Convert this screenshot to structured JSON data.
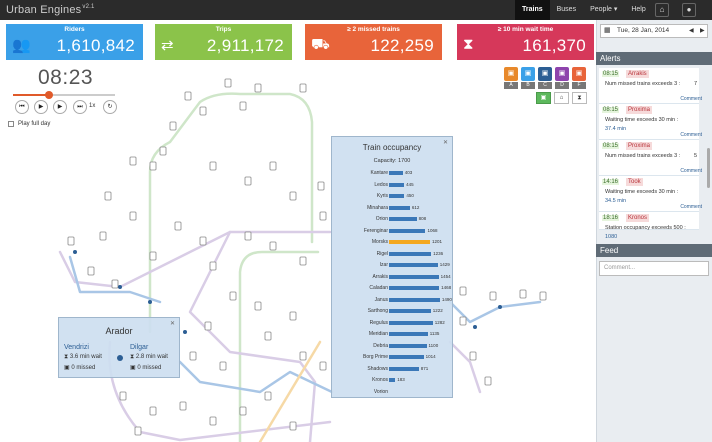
{
  "app": {
    "title": "Urban Engines",
    "version": "v2.1"
  },
  "nav": {
    "items": [
      "Trains",
      "Buses",
      "People",
      "Help"
    ],
    "active": "Trains",
    "people_caret": "▾"
  },
  "kpis": [
    {
      "label": "Riders",
      "value": "1,610,842",
      "color": "#3aa0e8",
      "icon": "riders-icon"
    },
    {
      "label": "Trips",
      "value": "2,911,172",
      "color": "#8bc34a",
      "icon": "trips-icon"
    },
    {
      "label": "≥ 2 missed trains",
      "value": "122,259",
      "color": "#e8643a",
      "icon": "missed-trains-icon"
    },
    {
      "label": "≥ 10 min wait time",
      "value": "161,370",
      "color": "#d6385a",
      "icon": "hourglass-icon"
    }
  ],
  "playback": {
    "time": "08:23",
    "speed": "1x",
    "play_full_day": "Play full day",
    "progress": 0.35
  },
  "modes": [
    {
      "letter": "A",
      "color": "#e8892b"
    },
    {
      "letter": "B",
      "color": "#3aa0e8"
    },
    {
      "letter": "C",
      "color": "#2c5e94"
    },
    {
      "letter": "D",
      "color": "#8e44ad"
    },
    {
      "letter": "F",
      "color": "#e8643a"
    }
  ],
  "occupancy": {
    "title": "Train occupancy",
    "capacity": "Capacity: 1700",
    "max": 1700,
    "rows": [
      {
        "name": "Kantare",
        "value": 403
      },
      {
        "name": "Ledos",
        "value": 445
      },
      {
        "name": "Kyris",
        "value": 450
      },
      {
        "name": "Minahara",
        "value": 612
      },
      {
        "name": "Orion",
        "value": 808
      },
      {
        "name": "Ferenginar",
        "value": 1068
      },
      {
        "name": "Morsks",
        "value": 1201,
        "highlight": true
      },
      {
        "name": "Rigel",
        "value": 1236
      },
      {
        "name": "Izar",
        "value": 1429
      },
      {
        "name": "Arrakis",
        "value": 1454
      },
      {
        "name": "Caladan",
        "value": 1468
      },
      {
        "name": "Janus",
        "value": 1490
      },
      {
        "name": "Sarthong",
        "value": 1222
      },
      {
        "name": "Regulus",
        "value": 1282
      },
      {
        "name": "Meridian",
        "value": 1135
      },
      {
        "name": "Debria",
        "value": 1100
      },
      {
        "name": "Borg Prime",
        "value": 1014
      },
      {
        "name": "Shadows",
        "value": 871
      },
      {
        "name": "Kronos",
        "value": 183
      },
      {
        "name": "Vorion",
        "value": 0
      }
    ]
  },
  "station": {
    "title": "Arador",
    "left": {
      "name": "Vendrizi",
      "wait": "3.6 min wait",
      "missed": "0 missed"
    },
    "right": {
      "name": "Dilgar",
      "wait": "2.8 min wait",
      "missed": "0 missed"
    }
  },
  "sidebar": {
    "date": "Tue, 28 Jan, 2014",
    "alerts_title": "Alerts",
    "feed_title": "Feed",
    "feed_placeholder": "Comment...",
    "alerts": [
      {
        "time": "08:15",
        "who": "Arrakis",
        "msg": "Num missed trains exceeds 3 :",
        "count": "7",
        "sub": "",
        "comment": "Comment"
      },
      {
        "time": "08:15",
        "who": "Proxima",
        "msg": "Waiting time exceeds 30 min :",
        "count": "",
        "sub": "37.4 min",
        "comment": "Comment"
      },
      {
        "time": "08:15",
        "who": "Proxima",
        "msg": "Num missed trains exceeds 3 :",
        "count": "5",
        "sub": "",
        "comment": "Comment"
      },
      {
        "time": "14:16",
        "who": "Took",
        "msg": "Waiting time exceeds 30 min :",
        "count": "",
        "sub": "34.5 min",
        "comment": "Comment"
      },
      {
        "time": "18:16",
        "who": "Kronos",
        "msg": "Station occupancy exceeds 500 :",
        "count": "",
        "sub": "1080",
        "comment": ""
      }
    ]
  }
}
